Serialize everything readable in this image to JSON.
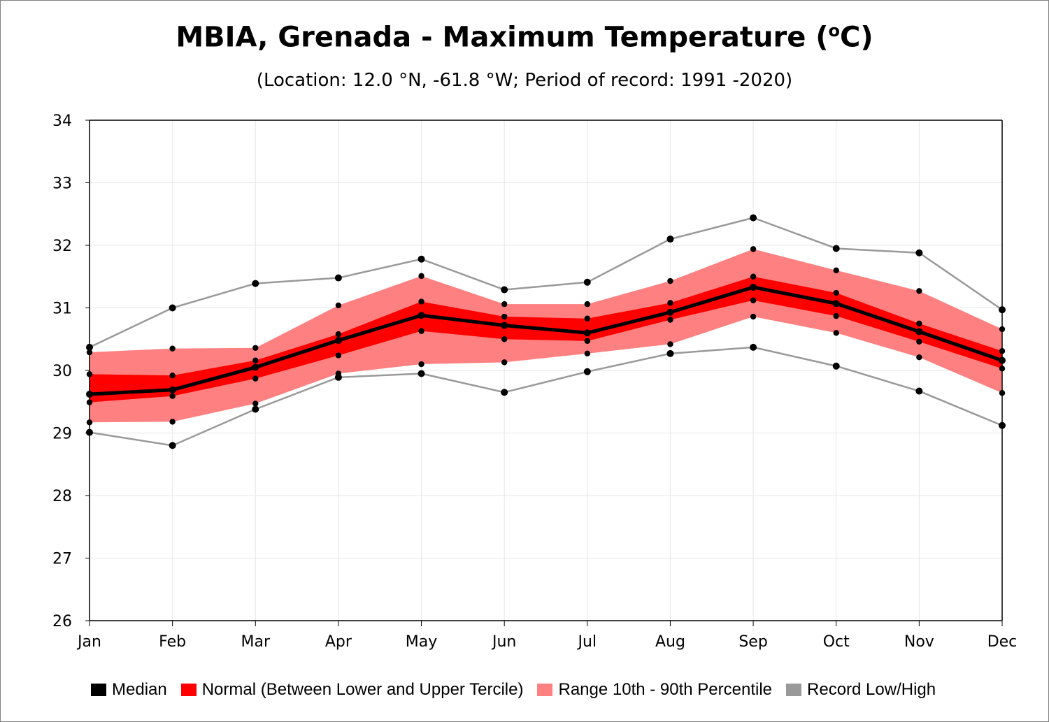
{
  "title": "MBIA, Grenada - Maximum Temperature (",
  "title_sup": "o",
  "title_end": "C)",
  "subtitle": "(Location: 12.0 °N, -61.8 °W; Period of record: 1991 -2020)",
  "colors": {
    "median": "#000000",
    "normal": "#ff0000",
    "range": "#ff8080",
    "record": "#999999",
    "grid": "#e6e6e6"
  },
  "chart_data": {
    "type": "line",
    "categories": [
      "Jan",
      "Feb",
      "Mar",
      "Apr",
      "May",
      "Jun",
      "Jul",
      "Aug",
      "Sep",
      "Oct",
      "Nov",
      "Dec"
    ],
    "ylim": [
      26,
      34
    ],
    "yticks": [
      "26",
      "27",
      "28",
      "29",
      "30",
      "31",
      "32",
      "33",
      "34"
    ],
    "grid": true,
    "legend_position": "bottom",
    "series": [
      {
        "name": "Record Low/High",
        "role": "record_high",
        "values": [
          30.37,
          31.0,
          31.39,
          31.48,
          31.78,
          31.29,
          31.41,
          32.1,
          32.44,
          31.95,
          31.88,
          30.97
        ]
      },
      {
        "name": "Record Low/High",
        "role": "record_low",
        "values": [
          29.01,
          28.8,
          29.38,
          29.89,
          29.95,
          29.65,
          29.98,
          30.27,
          30.37,
          30.07,
          29.67,
          29.12
        ]
      },
      {
        "name": "Range 10th - 90th Percentile",
        "role": "p90",
        "values": [
          30.29,
          30.35,
          30.36,
          31.04,
          31.51,
          31.06,
          31.06,
          31.43,
          31.94,
          31.6,
          31.27,
          30.66
        ]
      },
      {
        "name": "Range 10th - 90th Percentile",
        "role": "p10",
        "values": [
          29.17,
          29.18,
          29.47,
          29.95,
          30.1,
          30.13,
          30.27,
          30.42,
          30.86,
          30.6,
          30.21,
          29.64
        ]
      },
      {
        "name": "Normal (Between Lower and Upper Tercile)",
        "role": "upper_tercile",
        "values": [
          29.94,
          29.92,
          30.16,
          30.58,
          31.1,
          30.86,
          30.83,
          31.08,
          31.5,
          31.24,
          30.75,
          30.31
        ]
      },
      {
        "name": "Normal (Between Lower and Upper Tercile)",
        "role": "lower_tercile",
        "values": [
          29.49,
          29.59,
          29.87,
          30.24,
          30.63,
          30.5,
          30.47,
          30.81,
          31.12,
          30.87,
          30.46,
          30.03
        ]
      },
      {
        "name": "Median",
        "role": "median",
        "values": [
          29.62,
          29.69,
          30.05,
          30.48,
          30.88,
          30.72,
          30.6,
          30.93,
          31.33,
          31.07,
          30.62,
          30.16
        ]
      }
    ]
  },
  "legend": [
    {
      "label": "Median",
      "color": "#000000"
    },
    {
      "label": "Normal (Between Lower and Upper Tercile)",
      "color": "#ff0000"
    },
    {
      "label": "Range 10th - 90th Percentile",
      "color": "#ff8080"
    },
    {
      "label": "Record Low/High",
      "color": "#999999"
    }
  ]
}
